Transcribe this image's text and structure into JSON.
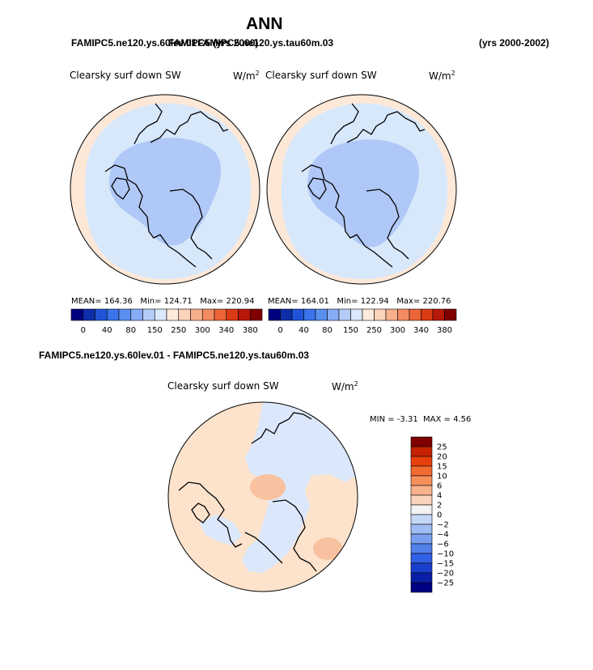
{
  "page": {
    "title": "ANN",
    "case_a_label": "FAMIPC5.ne120.ys.60lev.01",
    "case_overlap_label": "FAMIPC5 (yrs 2000)",
    "case_b_label": "FAMIPC5.ne120.ys.tau60m.03",
    "years_label": "(yrs 2000-2002)",
    "diff_title": "FAMIPC5.ne120.ys.60lev.01 - FAMIPC5.ne120.ys.tau60m.03"
  },
  "chart_data": [
    {
      "type": "heatmap",
      "projection": "polar-stereographic-north",
      "field_name": "Clearsky surf down SW",
      "units_base": "W/m",
      "units_exp": "2",
      "stats": {
        "mean_label": "MEAN=",
        "mean": "164.36",
        "min_label": "Min=",
        "min": "124.71",
        "max_label": "Max=",
        "max": "220.94"
      },
      "colorbar": {
        "colors": [
          "#000080",
          "#0d2ea8",
          "#1f54d9",
          "#3a73ea",
          "#5a8ff0",
          "#86acf5",
          "#b4cdf8",
          "#dbe8fb",
          "#fdecdd",
          "#fbd3b8",
          "#f7b08c",
          "#f38b62",
          "#ec6438",
          "#dc3a14",
          "#b81808",
          "#800000"
        ],
        "tick_labels": [
          "0",
          "40",
          "80",
          "150",
          "250",
          "300",
          "340",
          "380"
        ]
      },
      "dominant_colors": {
        "ocean_outer": "#fde8d8",
        "mid": "#d8e8fb",
        "inner": "#b0c8f7"
      }
    },
    {
      "type": "heatmap",
      "projection": "polar-stereographic-north",
      "field_name": "Clearsky surf down SW",
      "units_base": "W/m",
      "units_exp": "2",
      "stats": {
        "mean_label": "MEAN=",
        "mean": "164.01",
        "min_label": "Min=",
        "min": "122.94",
        "max_label": "Max=",
        "max": "220.76"
      },
      "colorbar": {
        "colors": [
          "#000080",
          "#0d2ea8",
          "#1f54d9",
          "#3a73ea",
          "#5a8ff0",
          "#86acf5",
          "#b4cdf8",
          "#dbe8fb",
          "#fdecdd",
          "#fbd3b8",
          "#f7b08c",
          "#f38b62",
          "#ec6438",
          "#dc3a14",
          "#b81808",
          "#800000"
        ],
        "tick_labels": [
          "0",
          "40",
          "80",
          "150",
          "250",
          "300",
          "340",
          "380"
        ]
      },
      "dominant_colors": {
        "ocean_outer": "#fde8d8",
        "mid": "#d8e8fb",
        "inner": "#b0c8f7"
      }
    },
    {
      "type": "heatmap",
      "projection": "polar-stereographic-north",
      "field_name": "Clearsky surf down SW",
      "units_base": "W/m",
      "units_exp": "2",
      "stats": {
        "min_label": "MIN =",
        "min": "-3.31",
        "max_label": "MAX =",
        "max": "4.56"
      },
      "colorbar": {
        "colors": [
          "#800000",
          "#c42200",
          "#e8400c",
          "#f26a32",
          "#f6905a",
          "#f9b28c",
          "#fcd3bc",
          "#f3f3f3",
          "#c6d8f8",
          "#9fbcf4",
          "#7a9ff0",
          "#5281ec",
          "#3060e6",
          "#1a3fce",
          "#0a1fa8",
          "#000080"
        ],
        "tick_labels": [
          "25",
          "20",
          "15",
          "10",
          "6",
          "4",
          "2",
          "0",
          "−2",
          "−4",
          "−6",
          "−10",
          "−15",
          "−20",
          "−25"
        ]
      },
      "dominant_colors": {
        "positive": "#fde3cc",
        "negative": "#dbe8fb",
        "strong_positive": "#f8c2a0"
      }
    }
  ]
}
